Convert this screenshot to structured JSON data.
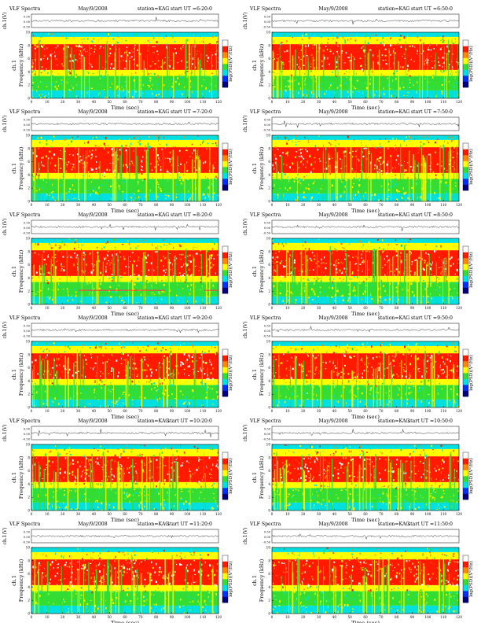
{
  "chart_data": [
    {
      "type": "heatmap",
      "header": {
        "title": "VLF Spectra",
        "date": "May/9/2008",
        "station": "station=KAG",
        "start_label": "start UT =6:20:0"
      },
      "top_ylabel": "ch.1(V)",
      "top_ticks": [
        "0.50",
        "0.00",
        "-0.50"
      ],
      "ylabel": "Frequency (kHz)",
      "ylabel_prefix": "ch.1",
      "ylim": [
        0,
        10
      ],
      "yticks": [
        "0",
        "2",
        "4",
        "6",
        "8",
        "10"
      ],
      "xlabel": "Time (sec)",
      "xlim": [
        0,
        120
      ],
      "xticks": [
        "0",
        "10",
        "20",
        "30",
        "40",
        "50",
        "60",
        "70",
        "80",
        "90",
        "100",
        "110",
        "120"
      ],
      "colorbar": {
        "label": "log(PSD)(V²/Hz)"
      }
    },
    {
      "type": "heatmap",
      "header": {
        "title": "VLF Spectra",
        "date": "May/9/2008",
        "station": "station=KAG",
        "start_label": "start UT =6:50:0"
      },
      "top_ylabel": "ch.1(V)",
      "top_ticks": [
        "0.50",
        "0.00",
        "-0.50"
      ],
      "ylabel": "Frequency (kHz)",
      "ylabel_prefix": "ch.1",
      "ylim": [
        0,
        10
      ],
      "yticks": [
        "0",
        "2",
        "4",
        "6",
        "8",
        "10"
      ],
      "xlabel": "Time (sec)",
      "xlim": [
        0,
        120
      ],
      "xticks": [
        "0",
        "10",
        "20",
        "30",
        "40",
        "50",
        "60",
        "70",
        "80",
        "90",
        "100",
        "110",
        "120"
      ],
      "colorbar": {
        "label": "log(PSD)(V²/Hz)"
      }
    },
    {
      "type": "heatmap",
      "header": {
        "title": "VLF Spectra",
        "date": "May/9/2008",
        "station": "station=KAG",
        "start_label": "start UT =7:20:0"
      },
      "top_ylabel": "ch.1(V)",
      "top_ticks": [
        "0.50",
        "0.00",
        "-0.50"
      ],
      "ylabel": "Frequency (kHz)",
      "ylabel_prefix": "ch.1",
      "ylim": [
        0,
        10
      ],
      "yticks": [
        "0",
        "2",
        "4",
        "6",
        "8",
        "10"
      ],
      "xlabel": "Time (sec)",
      "xlim": [
        0,
        120
      ],
      "xticks": [
        "0",
        "10",
        "20",
        "30",
        "40",
        "50",
        "60",
        "70",
        "80",
        "90",
        "100",
        "110",
        "120"
      ],
      "colorbar": {
        "label": "log(PSD)(V²/Hz)"
      }
    },
    {
      "type": "heatmap",
      "header": {
        "title": "VLF Spectra",
        "date": "May/9/2008",
        "station": "station=KAG",
        "start_label": "start UT =7:50:0"
      },
      "top_ylabel": "ch.1(V)",
      "top_ticks": [
        "0.50",
        "0.00",
        "-0.50"
      ],
      "ylabel": "Frequency (kHz)",
      "ylabel_prefix": "ch.1",
      "ylim": [
        0,
        10
      ],
      "yticks": [
        "0",
        "2",
        "4",
        "6",
        "8",
        "10"
      ],
      "xlabel": "Time (sec)",
      "xlim": [
        0,
        120
      ],
      "xticks": [
        "0",
        "10",
        "20",
        "30",
        "40",
        "50",
        "60",
        "70",
        "80",
        "90",
        "100",
        "110",
        "120"
      ],
      "colorbar": {
        "label": "log(PSD)(V²/Hz)"
      }
    },
    {
      "type": "heatmap",
      "header": {
        "title": "VLF Spectra",
        "date": "May/9/2008",
        "station": "station=KAG",
        "start_label": "start UT =8:20:0"
      },
      "top_ylabel": "ch.1(V)",
      "top_ticks": [
        "0.50",
        "0.00",
        "-0.50"
      ],
      "ylabel": "Frequency (kHz)",
      "ylabel_prefix": "ch.1",
      "ylim": [
        0,
        10
      ],
      "yticks": [
        "0",
        "2",
        "4",
        "6",
        "8",
        "10"
      ],
      "xlabel": "Time (sec)",
      "xlim": [
        0,
        120
      ],
      "xticks": [
        "0",
        "10",
        "20",
        "30",
        "40",
        "50",
        "60",
        "70",
        "80",
        "90",
        "100",
        "110",
        "120"
      ],
      "colorbar": {
        "label": "log(PSD)(V²/Hz)"
      }
    },
    {
      "type": "heatmap",
      "header": {
        "title": "VLF Spectra",
        "date": "May/9/2008",
        "station": "station=KAG",
        "start_label": "start UT =8:50:0"
      },
      "top_ylabel": "ch.1(V)",
      "top_ticks": [
        "0.50",
        "0.00",
        "-0.50"
      ],
      "ylabel": "Frequency (kHz)",
      "ylabel_prefix": "ch.1",
      "ylim": [
        0,
        10
      ],
      "yticks": [
        "0",
        "2",
        "4",
        "6",
        "8",
        "10"
      ],
      "xlabel": "Time (sec)",
      "xlim": [
        0,
        120
      ],
      "xticks": [
        "0",
        "10",
        "20",
        "30",
        "40",
        "50",
        "60",
        "70",
        "80",
        "90",
        "100",
        "110",
        "120"
      ],
      "colorbar": {
        "label": "log(PSD)(V²/Hz)"
      }
    },
    {
      "type": "heatmap",
      "header": {
        "title": "VLF Spectra",
        "date": "May/9/2008",
        "station": "station=KAG",
        "start_label": "start UT =9:20:0"
      },
      "top_ylabel": "ch.1(V)",
      "top_ticks": [
        "0.50",
        "0.00",
        "-0.50"
      ],
      "ylabel": "Frequency (kHz)",
      "ylabel_prefix": "ch.1",
      "ylim": [
        0,
        10
      ],
      "yticks": [
        "0",
        "2",
        "4",
        "6",
        "8",
        "10"
      ],
      "xlabel": "Time (sec)",
      "xlim": [
        0,
        120
      ],
      "xticks": [
        "0",
        "10",
        "20",
        "30",
        "40",
        "50",
        "60",
        "70",
        "80",
        "90",
        "100",
        "110",
        "120"
      ],
      "colorbar": {
        "label": "log(PSD)(V²/Hz)"
      }
    },
    {
      "type": "heatmap",
      "header": {
        "title": "VLF Spectra",
        "date": "May/9/2008",
        "station": "station=KAG",
        "start_label": "start UT =9:50:0"
      },
      "top_ylabel": "ch.1(V)",
      "top_ticks": [
        "0.50",
        "0.00",
        "-0.50"
      ],
      "ylabel": "Frequency (kHz)",
      "ylabel_prefix": "ch.1",
      "ylim": [
        0,
        10
      ],
      "yticks": [
        "0",
        "2",
        "4",
        "6",
        "8",
        "10"
      ],
      "xlabel": "Time (sec)",
      "xlim": [
        0,
        120
      ],
      "xticks": [
        "0",
        "10",
        "20",
        "30",
        "40",
        "50",
        "60",
        "70",
        "80",
        "90",
        "100",
        "110",
        "120"
      ],
      "colorbar": {
        "label": "log(PSD)(V²/Hz)"
      }
    },
    {
      "type": "heatmap",
      "header": {
        "title": "VLF Spectra",
        "date": "May/9/2008",
        "station": "station=KAG",
        "start_label": "start UT =10:20:0"
      },
      "top_ylabel": "ch.1(V)",
      "top_ticks": [
        "0.50",
        "0.00",
        "-0.50"
      ],
      "ylabel": "Frequency (kHz)",
      "ylabel_prefix": "ch.1",
      "ylim": [
        0,
        10
      ],
      "yticks": [
        "0",
        "2",
        "4",
        "6",
        "8",
        "10"
      ],
      "xlabel": "Time (sec)",
      "xlim": [
        0,
        120
      ],
      "xticks": [
        "0",
        "10",
        "20",
        "30",
        "40",
        "50",
        "60",
        "70",
        "80",
        "90",
        "100",
        "110",
        "120"
      ],
      "colorbar": {
        "label": "log(PSD)(V²/Hz)"
      }
    },
    {
      "type": "heatmap",
      "header": {
        "title": "VLF Spectra",
        "date": "May/9/2008",
        "station": "station=KAG",
        "start_label": "start UT =10:50:0"
      },
      "top_ylabel": "ch.1(V)",
      "top_ticks": [
        "0.50",
        "0.00",
        "-0.50"
      ],
      "ylabel": "Frequency (kHz)",
      "ylabel_prefix": "ch.1",
      "ylim": [
        0,
        10
      ],
      "yticks": [
        "0",
        "2",
        "4",
        "6",
        "8",
        "10"
      ],
      "xlabel": "Time (sec)",
      "xlim": [
        0,
        120
      ],
      "xticks": [
        "0",
        "10",
        "20",
        "30",
        "40",
        "50",
        "60",
        "70",
        "80",
        "90",
        "100",
        "110",
        "120"
      ],
      "colorbar": {
        "label": "log(PSD)(V²/Hz)"
      }
    },
    {
      "type": "heatmap",
      "header": {
        "title": "VLF Spectra",
        "date": "May/9/2008",
        "station": "station=KAG",
        "start_label": "start UT =11:20:0"
      },
      "top_ylabel": "ch.1(V)",
      "top_ticks": [
        "0.50",
        "0.00",
        "-0.50"
      ],
      "ylabel": "Frequency (kHz)",
      "ylabel_prefix": "ch.1",
      "ylim": [
        0,
        10
      ],
      "yticks": [
        "0",
        "2",
        "4",
        "6",
        "8",
        "10"
      ],
      "xlabel": "Time (sec)",
      "xlim": [
        0,
        120
      ],
      "xticks": [
        "0",
        "10",
        "20",
        "30",
        "40",
        "50",
        "60",
        "70",
        "80",
        "90",
        "100",
        "110",
        "120"
      ],
      "colorbar": {
        "label": "log(PSD)(V²/Hz)"
      }
    },
    {
      "type": "heatmap",
      "header": {
        "title": "VLF Spectra",
        "date": "May/9/2008",
        "station": "station=KAG",
        "start_label": "start UT =11:50:0"
      },
      "top_ylabel": "ch.1(V)",
      "top_ticks": [
        "0.50",
        "0.00",
        "-0.50"
      ],
      "ylabel": "Frequency (kHz)",
      "ylabel_prefix": "ch.1",
      "ylim": [
        0,
        10
      ],
      "yticks": [
        "0",
        "2",
        "4",
        "6",
        "8",
        "10"
      ],
      "xlabel": "Time (sec)",
      "xlim": [
        0,
        120
      ],
      "xticks": [
        "0",
        "10",
        "20",
        "30",
        "40",
        "50",
        "60",
        "70",
        "80",
        "90",
        "100",
        "110",
        "120"
      ],
      "colorbar": {
        "label": "log(PSD)(V²/Hz)"
      }
    }
  ],
  "colors": {
    "white": "#ffffff",
    "red": "#ff1a00",
    "orange": "#ff8800",
    "yellow": "#ffff00",
    "green": "#33dd33",
    "cyan": "#00e0e0",
    "blue": "#0030ff",
    "navy": "#000080"
  }
}
